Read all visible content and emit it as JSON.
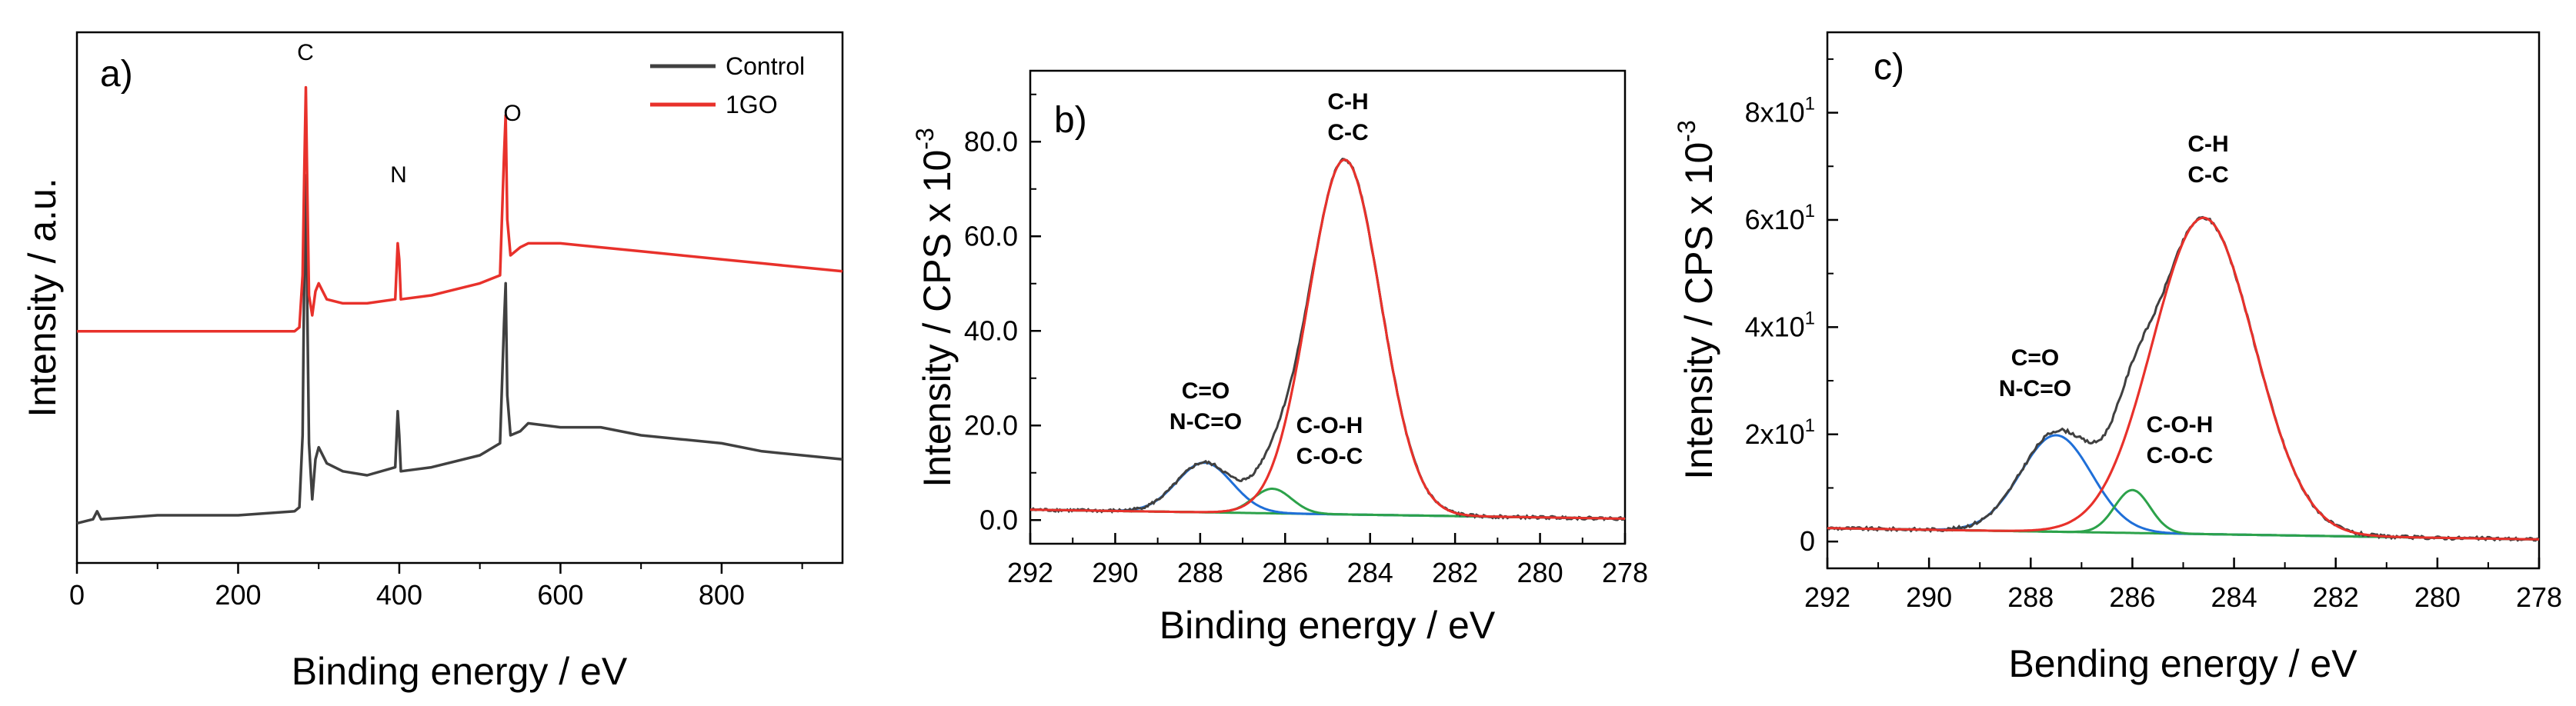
{
  "chart_data": [
    {
      "type": "line",
      "panel_label": "a)",
      "xlabel": "Binding energy / eV",
      "ylabel": "Intensity / a.u.",
      "xlim": [
        0,
        950
      ],
      "x_ticks": [
        "0",
        "200",
        "400",
        "600",
        "800"
      ],
      "legend": {
        "position": "top-right",
        "entries": [
          "Control",
          "1GO"
        ]
      },
      "peak_labels": [
        "C",
        "N",
        "O"
      ],
      "series": [
        {
          "name": "Control",
          "color": "#404040",
          "points": [
            [
              0,
              8
            ],
            [
              20,
              9
            ],
            [
              25,
              11
            ],
            [
              30,
              9
            ],
            [
              100,
              10
            ],
            [
              200,
              10
            ],
            [
              270,
              11
            ],
            [
              276,
              12
            ],
            [
              280,
              30
            ],
            [
              282,
              70
            ],
            [
              284,
              95
            ],
            [
              286,
              60
            ],
            [
              288,
              28
            ],
            [
              292,
              14
            ],
            [
              296,
              24
            ],
            [
              300,
              27
            ],
            [
              310,
              23
            ],
            [
              330,
              21
            ],
            [
              360,
              20
            ],
            [
              395,
              22
            ],
            [
              398,
              36
            ],
            [
              400,
              30
            ],
            [
              402,
              21
            ],
            [
              440,
              22
            ],
            [
              500,
              25
            ],
            [
              525,
              28
            ],
            [
              530,
              58
            ],
            [
              532,
              68
            ],
            [
              534,
              40
            ],
            [
              538,
              30
            ],
            [
              550,
              31
            ],
            [
              560,
              33
            ],
            [
              600,
              32
            ],
            [
              650,
              32
            ],
            [
              700,
              30
            ],
            [
              750,
              29
            ],
            [
              800,
              28
            ],
            [
              850,
              26
            ],
            [
              900,
              25
            ],
            [
              950,
              24
            ]
          ]
        },
        {
          "name": "1GO",
          "color": "#e8312b",
          "points": [
            [
              0,
              56
            ],
            [
              100,
              56
            ],
            [
              200,
              56
            ],
            [
              270,
              56
            ],
            [
              276,
              57
            ],
            [
              280,
              70
            ],
            [
              282,
              95
            ],
            [
              284,
              117
            ],
            [
              286,
              90
            ],
            [
              288,
              65
            ],
            [
              292,
              60
            ],
            [
              296,
              66
            ],
            [
              300,
              68
            ],
            [
              310,
              64
            ],
            [
              330,
              63
            ],
            [
              360,
              63
            ],
            [
              395,
              64
            ],
            [
              398,
              78
            ],
            [
              400,
              74
            ],
            [
              402,
              64
            ],
            [
              440,
              65
            ],
            [
              500,
              68
            ],
            [
              525,
              70
            ],
            [
              530,
              100
            ],
            [
              532,
              110
            ],
            [
              534,
              84
            ],
            [
              538,
              75
            ],
            [
              550,
              77
            ],
            [
              560,
              78
            ],
            [
              600,
              78
            ],
            [
              650,
              77
            ],
            [
              700,
              76
            ],
            [
              750,
              75
            ],
            [
              800,
              74
            ],
            [
              850,
              73
            ],
            [
              900,
              72
            ],
            [
              950,
              71
            ]
          ]
        }
      ]
    },
    {
      "type": "line",
      "panel_label": "b)",
      "xlabel": "Binding energy / eV",
      "ylabel": "Intensity / CPS x 10",
      "ylabel_exp": "-3",
      "xlim": [
        292,
        278
      ],
      "ylim": [
        -5,
        95
      ],
      "x_ticks": [
        "292",
        "290",
        "288",
        "286",
        "284",
        "282",
        "280",
        "278"
      ],
      "y_ticks": [
        "0.0",
        "20.0",
        "40.0",
        "60.0",
        "80.0"
      ],
      "annotations": [
        {
          "lines": [
            "C-H",
            "C-C"
          ]
        },
        {
          "lines": [
            "C=O",
            "N-C=O"
          ]
        },
        {
          "lines": [
            "C-O-H",
            "C-O-C"
          ]
        }
      ],
      "baseline": {
        "at_292": 2.2,
        "at_278": 0.3
      },
      "components": [
        {
          "name": "C-H / C-C",
          "color": "#e8312b",
          "center": 284.6,
          "height": 75,
          "sigma": 0.85
        },
        {
          "name": "C=O / N-C=O",
          "color": "#1f6fd8",
          "center": 287.9,
          "height": 10.5,
          "sigma": 0.65
        },
        {
          "name": "C-O-H / C-O-C",
          "color": "#2ca24a",
          "center": 286.3,
          "height": 5.2,
          "sigma": 0.45
        }
      ],
      "envelope_color": "#404040",
      "baseline_color": "#2ca24a"
    },
    {
      "type": "line",
      "panel_label": "c)",
      "xlabel": "Bending energy / eV",
      "ylabel": "Intensity / CPS x 10",
      "ylabel_exp": "-3",
      "xlim": [
        292,
        278
      ],
      "ylim": [
        -5,
        95
      ],
      "x_ticks": [
        "292",
        "290",
        "288",
        "286",
        "284",
        "282",
        "280",
        "278"
      ],
      "y_ticks": [
        "0",
        "2x10",
        "4x10",
        "6x10",
        "8x10"
      ],
      "y_tick_exp": "1",
      "annotations": [
        {
          "lines": [
            "C-H",
            "C-C"
          ]
        },
        {
          "lines": [
            "C=O",
            "N-C=O"
          ]
        },
        {
          "lines": [
            "C-O-H",
            "C-O-C"
          ]
        }
      ],
      "baseline": {
        "at_292": 2.5,
        "at_278": 0.4
      },
      "components": [
        {
          "name": "C-H / C-C",
          "color": "#e8312b",
          "center": 284.6,
          "height": 59,
          "sigma": 1.0
        },
        {
          "name": "C=O / N-C=O",
          "color": "#1f6fd8",
          "center": 287.5,
          "height": 18,
          "sigma": 0.7
        },
        {
          "name": "C-O-H / C-O-C",
          "color": "#2ca24a",
          "center": 286.0,
          "height": 8,
          "sigma": 0.35
        }
      ],
      "envelope_color": "#404040",
      "baseline_color": "#2ca24a"
    }
  ]
}
